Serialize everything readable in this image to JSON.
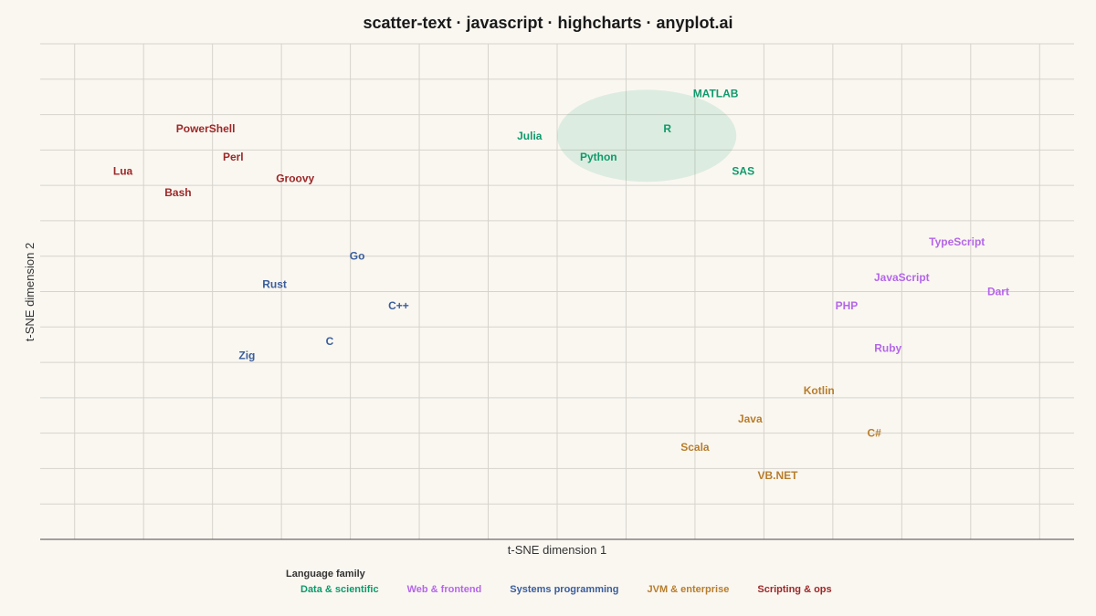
{
  "chart_data": {
    "type": "scatter",
    "title": "scatter-text · javascript · highcharts · anyplot.ai",
    "xlabel": "t-SNE dimension 1",
    "ylabel": "t-SNE dimension 2",
    "xlim": [
      -75,
      75
    ],
    "ylim": [
      -70,
      70
    ],
    "grid": true,
    "legend": {
      "title": "Language family",
      "placement": "bottom-center"
    },
    "series": [
      {
        "name": "Data & scientific",
        "color": "#0e9a6c",
        "points": [
          {
            "label": "MATLAB",
            "x": 23,
            "y": 56
          },
          {
            "label": "R",
            "x": 16,
            "y": 46
          },
          {
            "label": "Julia",
            "x": -4,
            "y": 44
          },
          {
            "label": "Python",
            "x": 6,
            "y": 38
          },
          {
            "label": "SAS",
            "x": 27,
            "y": 34
          }
        ],
        "highlight": {
          "cx": 13,
          "cy": 44,
          "r": 13
        }
      },
      {
        "name": "Web & frontend",
        "color": "#b466e8",
        "points": [
          {
            "label": "TypeScript",
            "x": 58,
            "y": 14
          },
          {
            "label": "JavaScript",
            "x": 50,
            "y": 4
          },
          {
            "label": "Dart",
            "x": 64,
            "y": 0
          },
          {
            "label": "PHP",
            "x": 42,
            "y": -4
          },
          {
            "label": "Ruby",
            "x": 48,
            "y": -16
          }
        ]
      },
      {
        "name": "Systems programming",
        "color": "#3a5e9c",
        "points": [
          {
            "label": "Go",
            "x": -29,
            "y": 10
          },
          {
            "label": "Rust",
            "x": -41,
            "y": 2
          },
          {
            "label": "C++",
            "x": -23,
            "y": -4
          },
          {
            "label": "C",
            "x": -33,
            "y": -14
          },
          {
            "label": "Zig",
            "x": -45,
            "y": -18
          }
        ]
      },
      {
        "name": "JVM & enterprise",
        "color": "#b77d2c",
        "points": [
          {
            "label": "Kotlin",
            "x": 38,
            "y": -28
          },
          {
            "label": "Java",
            "x": 28,
            "y": -36
          },
          {
            "label": "C#",
            "x": 46,
            "y": -40
          },
          {
            "label": "Scala",
            "x": 20,
            "y": -44
          },
          {
            "label": "VB.NET",
            "x": 32,
            "y": -52
          }
        ]
      },
      {
        "name": "Scripting & ops",
        "color": "#9c2828",
        "points": [
          {
            "label": "PowerShell",
            "x": -51,
            "y": 46
          },
          {
            "label": "Perl",
            "x": -47,
            "y": 38
          },
          {
            "label": "Lua",
            "x": -63,
            "y": 34
          },
          {
            "label": "Groovy",
            "x": -38,
            "y": 32
          },
          {
            "label": "Bash",
            "x": -55,
            "y": 28
          }
        ]
      }
    ]
  }
}
